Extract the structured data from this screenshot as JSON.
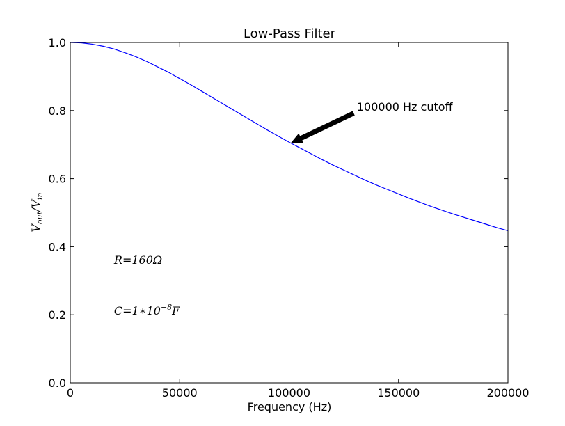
{
  "chart_data": {
    "type": "line",
    "title": "Low-Pass Filter",
    "xlabel": "Frequency (Hz)",
    "ylabel": {
      "base1": "V",
      "sub1": "out",
      "slash": "/",
      "base2": "V",
      "sub2": "in"
    },
    "xlim": [
      0,
      200000
    ],
    "ylim": [
      0.0,
      1.0
    ],
    "xticks": [
      0,
      50000,
      100000,
      150000,
      200000
    ],
    "xtick_labels": [
      "0",
      "50000",
      "100000",
      "150000",
      "200000"
    ],
    "yticks": [
      0.0,
      0.2,
      0.4,
      0.6,
      0.8,
      1.0
    ],
    "ytick_labels": [
      "0.0",
      "0.2",
      "0.4",
      "0.6",
      "0.8",
      "1.0"
    ],
    "grid": false,
    "series": [
      {
        "color": "#0000ff",
        "x": [
          0,
          5000,
          10000,
          15000,
          20000,
          25000,
          30000,
          35000,
          40000,
          45000,
          50000,
          55000,
          60000,
          65000,
          70000,
          75000,
          80000,
          85000,
          90000,
          95000,
          100000,
          105000,
          110000,
          115000,
          120000,
          125000,
          130000,
          135000,
          140000,
          145000,
          150000,
          155000,
          160000,
          165000,
          170000,
          175000,
          180000,
          185000,
          190000,
          195000,
          200000
        ],
        "y": [
          1.0,
          0.999,
          0.995,
          0.989,
          0.981,
          0.97,
          0.958,
          0.944,
          0.928,
          0.912,
          0.894,
          0.876,
          0.857,
          0.838,
          0.819,
          0.8,
          0.781,
          0.762,
          0.743,
          0.725,
          0.707,
          0.69,
          0.673,
          0.656,
          0.64,
          0.625,
          0.61,
          0.595,
          0.581,
          0.568,
          0.555,
          0.542,
          0.53,
          0.518,
          0.507,
          0.496,
          0.486,
          0.476,
          0.466,
          0.456,
          0.447
        ]
      }
    ],
    "annotations": [
      {
        "text": "100000 Hz cutoff",
        "arrow_tip": [
          101000,
          0.705
        ],
        "text_anchor": [
          130000,
          0.8
        ]
      }
    ],
    "math_labels": [
      {
        "text": "R=160Ω",
        "at": [
          20000,
          0.35
        ]
      },
      {
        "base": "C=1∗10",
        "sup": "−8",
        "tail": "F",
        "at": [
          20000,
          0.2
        ]
      }
    ]
  }
}
